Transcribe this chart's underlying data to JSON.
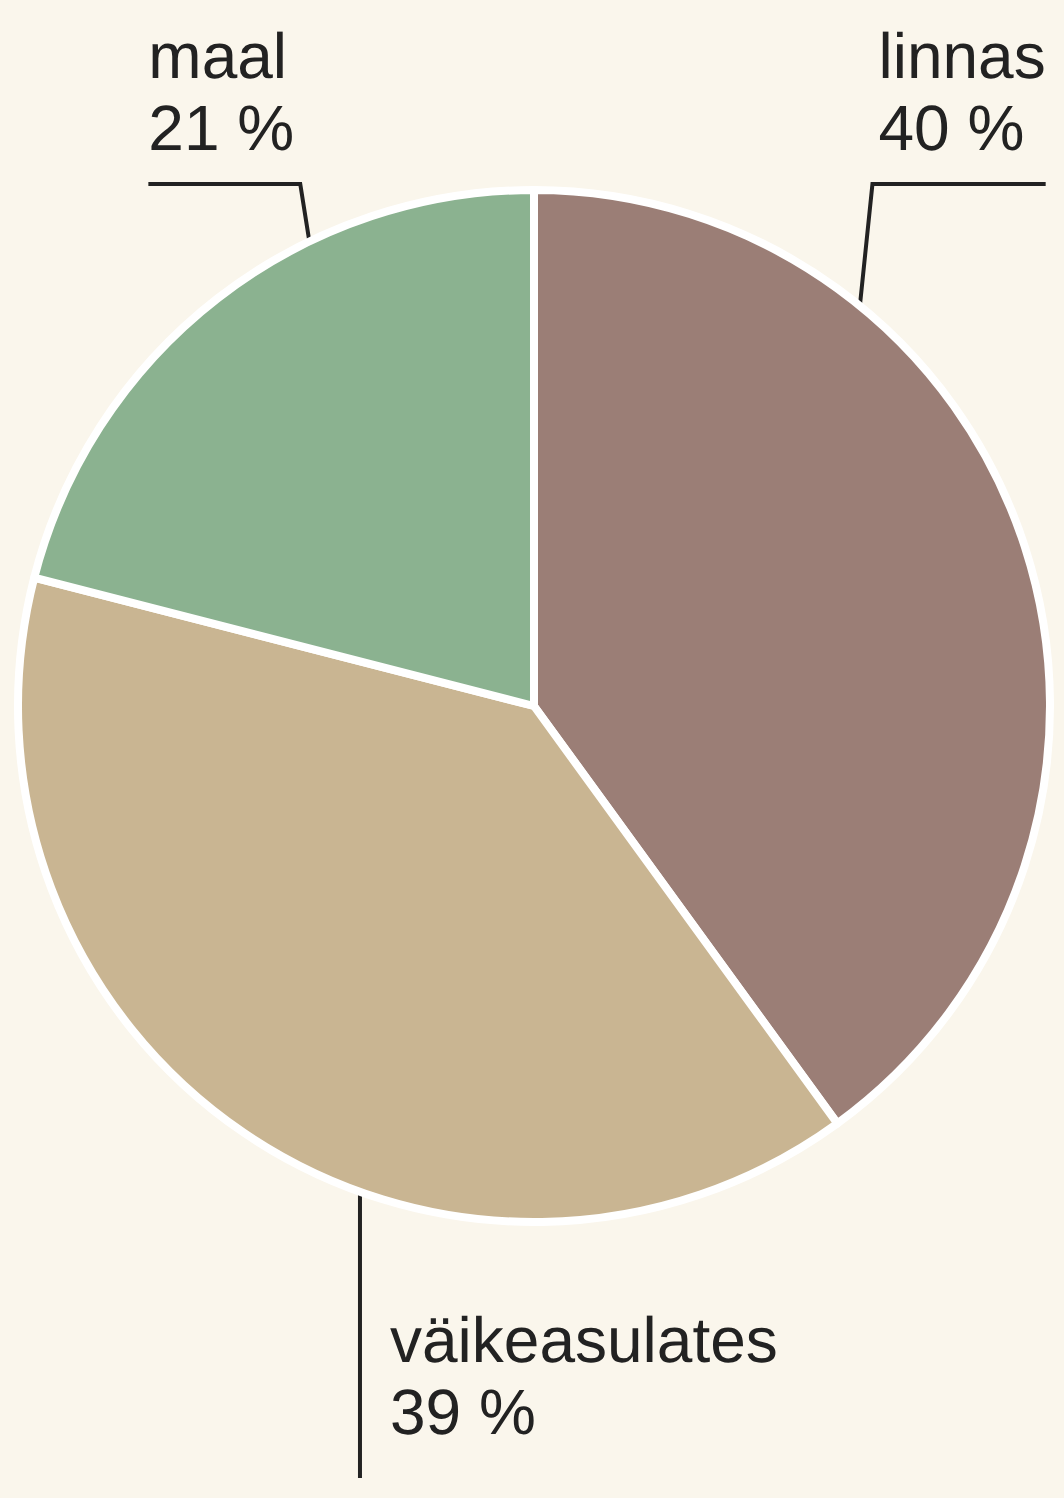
{
  "chart_data": {
    "type": "pie",
    "categories": [
      "linnas",
      "väikeasulates",
      "maal"
    ],
    "values": [
      40,
      39,
      21
    ],
    "colors": [
      "#9b7e76",
      "#c9b592",
      "#8bb290"
    ],
    "value_labels": [
      "40 %",
      "39 %",
      "21 %"
    ]
  }
}
